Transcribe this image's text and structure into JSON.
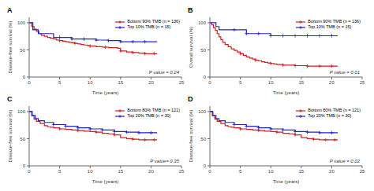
{
  "chart_data": [
    {
      "type": "step",
      "title": "A",
      "xlabel": "Time (years)",
      "ylabel": "Disease-free survival (%)",
      "annotations": [
        "P value = 0.24"
      ],
      "legend": "upper right",
      "grid": false,
      "xlim": [
        0,
        25
      ],
      "ylim": [
        0,
        110
      ],
      "xticks": [
        0,
        5,
        10,
        15,
        20,
        25
      ],
      "yticks": [
        0,
        50,
        100
      ],
      "series": [
        {
          "name": "Bottom 90% TMB (n = 136)",
          "color": "#cc2222",
          "marker": "+",
          "x": [
            0,
            0.4,
            0.8,
            1.2,
            1.6,
            2.0,
            2.5,
            3.0,
            3.5,
            4.0,
            4.5,
            5.0,
            5.5,
            6.0,
            6.5,
            7.0,
            7.5,
            8.0,
            8.5,
            9.0,
            9.5,
            10.0,
            10.5,
            11.0,
            11.5,
            12.0,
            12.5,
            13.0,
            13.5,
            14.0,
            14.5,
            15.0,
            16.0,
            17.0,
            18.0,
            19.0,
            20.0,
            21.0
          ],
          "values": [
            100,
            93,
            88,
            84,
            80,
            77,
            75,
            73,
            71,
            70,
            68,
            67,
            66,
            65,
            64,
            63,
            62,
            61,
            60,
            59,
            58,
            57,
            57,
            56,
            56,
            55,
            55,
            54,
            54,
            54,
            53,
            48,
            46,
            45,
            44,
            43,
            43,
            43
          ],
          "censor_x": [
            5.0,
            7.5,
            10.0,
            12.5,
            15.0,
            17.0,
            19.0,
            20.5
          ],
          "censor_values": [
            67,
            62,
            57,
            55,
            48,
            45,
            43,
            43
          ]
        },
        {
          "name": "Top 10% TMB (n = 15)",
          "color": "#2222cc",
          "marker": "+",
          "x": [
            0,
            0.6,
            1.5,
            2.5,
            4.0,
            5.0,
            7.0,
            9.0,
            11.0,
            13.0,
            15.0,
            17.0,
            19.0,
            21.0
          ],
          "values": [
            100,
            87,
            80,
            80,
            73,
            73,
            70,
            70,
            68,
            67,
            65,
            65,
            65,
            65
          ],
          "censor_x": [
            5.0,
            7.0,
            9.0,
            11.0,
            13.0,
            15.0,
            17.0,
            19.0
          ],
          "censor_values": [
            73,
            70,
            70,
            68,
            67,
            65,
            65,
            65
          ]
        }
      ]
    },
    {
      "type": "step",
      "title": "B",
      "xlabel": "Time (years)",
      "ylabel": "Overall survival (%)",
      "annotations": [
        "P value = 0.01"
      ],
      "legend": "upper right",
      "grid": false,
      "xlim": [
        0,
        25
      ],
      "ylim": [
        0,
        110
      ],
      "xticks": [
        0,
        5,
        10,
        15,
        20,
        25
      ],
      "yticks": [
        0,
        50,
        100
      ],
      "series": [
        {
          "name": "Bottom 90% TMB (n = 136)",
          "color": "#cc2222",
          "marker": "+",
          "x": [
            0,
            0.3,
            0.6,
            0.9,
            1.2,
            1.5,
            1.8,
            2.1,
            2.5,
            3.0,
            3.5,
            4.0,
            4.5,
            5.0,
            5.5,
            6.0,
            6.5,
            7.0,
            7.5,
            8.0,
            8.5,
            9.0,
            9.5,
            10.0,
            10.5,
            11.0,
            11.5,
            12.0,
            13.0,
            14.0,
            15.0,
            16.0,
            17.0,
            18.0,
            19.0,
            20.0,
            21.0
          ],
          "values": [
            100,
            96,
            91,
            86,
            80,
            74,
            69,
            64,
            60,
            56,
            52,
            49,
            46,
            43,
            40,
            37,
            35,
            33,
            31,
            30,
            28,
            27,
            26,
            25,
            24,
            23,
            23,
            22,
            22,
            21,
            21,
            20,
            20,
            20,
            20,
            20,
            20
          ],
          "censor_x": [
            5.0,
            7.5,
            10.0,
            12.0,
            14.0,
            16.0,
            18.0,
            20.0
          ],
          "censor_values": [
            43,
            31,
            25,
            22,
            21,
            20,
            20,
            20
          ]
        },
        {
          "name": "Top 10% TMB (n = 15)",
          "color": "#2222cc",
          "marker": "+",
          "x": [
            0,
            0.5,
            1.0,
            1.5,
            2.5,
            4.0,
            6.0,
            8.0,
            10.0,
            12.0,
            14.0,
            16.0,
            18.0,
            20.0,
            21.0
          ],
          "values": [
            100,
            100,
            93,
            87,
            87,
            87,
            80,
            80,
            76,
            76,
            76,
            76,
            76,
            76,
            76
          ],
          "censor_x": [
            4.0,
            6.0,
            8.0,
            10.0,
            12.0,
            14.0,
            16.0,
            18.0,
            20.0
          ],
          "censor_values": [
            87,
            80,
            80,
            76,
            76,
            76,
            76,
            76,
            76
          ]
        }
      ]
    },
    {
      "type": "step",
      "title": "C",
      "xlabel": "Time (years)",
      "ylabel": "Disease-free survival (%)",
      "annotations": [
        "P value= 0.35"
      ],
      "legend": "upper right",
      "grid": false,
      "xlim": [
        0,
        25
      ],
      "ylim": [
        0,
        110
      ],
      "xticks": [
        0,
        5,
        10,
        15,
        20,
        25
      ],
      "yticks": [
        0,
        50,
        100
      ],
      "series": [
        {
          "name": "Bottom 80% TMB (n = 121)",
          "color": "#cc2222",
          "marker": "+",
          "x": [
            0,
            0.4,
            0.8,
            1.2,
            1.8,
            2.5,
            3.0,
            3.5,
            4.0,
            5.0,
            6.0,
            7.0,
            8.0,
            9.0,
            10.0,
            11.0,
            12.0,
            13.0,
            14.0,
            15.0,
            16.0,
            17.0,
            18.0,
            19.0,
            20.0,
            21.0
          ],
          "values": [
            100,
            92,
            86,
            82,
            78,
            74,
            72,
            71,
            70,
            68,
            67,
            66,
            65,
            64,
            63,
            62,
            60,
            59,
            57,
            52,
            50,
            49,
            48,
            48,
            48,
            48
          ],
          "censor_x": [
            5.0,
            8.0,
            11.0,
            14.0,
            17.0,
            19.0,
            20.5
          ],
          "censor_values": [
            68,
            65,
            62,
            57,
            49,
            48,
            48
          ]
        },
        {
          "name": "Top 20% TMB (n = 30)",
          "color": "#2222cc",
          "marker": "+",
          "x": [
            0,
            0.5,
            1.0,
            1.5,
            2.5,
            4.0,
            6.0,
            8.0,
            10.0,
            12.0,
            14.0,
            16.0,
            18.0,
            20.0,
            21.0
          ],
          "values": [
            100,
            93,
            87,
            83,
            80,
            76,
            73,
            70,
            68,
            66,
            63,
            62,
            61,
            61,
            61
          ],
          "censor_x": [
            4.0,
            6.0,
            8.0,
            10.0,
            12.0,
            14.0,
            16.0,
            18.0,
            20.0
          ],
          "censor_values": [
            76,
            73,
            70,
            68,
            66,
            63,
            62,
            61,
            61
          ]
        }
      ]
    },
    {
      "type": "step",
      "title": "D",
      "xlabel": "Time (years)",
      "ylabel": "Disease-free survival (%)",
      "annotations": [
        "P value = 0.02"
      ],
      "legend": "upper right",
      "grid": false,
      "xlim": [
        0,
        25
      ],
      "ylim": [
        0,
        110
      ],
      "xticks": [
        0,
        5,
        10,
        15,
        20,
        25
      ],
      "yticks": [
        0,
        50,
        100
      ],
      "series": [
        {
          "name": "Bottom 80% TMB (n = 121)",
          "color": "#cc2222",
          "marker": "+",
          "x": [
            0,
            0.4,
            0.8,
            1.2,
            1.8,
            2.5,
            3.0,
            3.5,
            4.0,
            5.0,
            6.0,
            7.0,
            8.0,
            9.0,
            10.0,
            11.0,
            12.0,
            13.0,
            14.0,
            15.0,
            16.0,
            17.0,
            18.0,
            19.0,
            20.0,
            21.0
          ],
          "values": [
            100,
            92,
            86,
            82,
            78,
            74,
            72,
            71,
            70,
            68,
            67,
            66,
            65,
            64,
            63,
            62,
            60,
            59,
            57,
            52,
            50,
            49,
            48,
            48,
            48,
            48
          ],
          "censor_x": [
            5.0,
            8.0,
            11.0,
            14.0,
            17.0,
            19.0,
            20.5
          ],
          "censor_values": [
            68,
            65,
            62,
            57,
            49,
            48,
            48
          ]
        },
        {
          "name": "Top 20% TMB (n = 30)",
          "color": "#2222cc",
          "marker": "+",
          "x": [
            0,
            0.5,
            1.0,
            1.5,
            2.5,
            4.0,
            6.0,
            8.0,
            10.0,
            12.0,
            14.0,
            16.0,
            18.0,
            20.0,
            21.0
          ],
          "values": [
            100,
            93,
            87,
            83,
            80,
            76,
            73,
            70,
            68,
            66,
            63,
            62,
            61,
            61,
            61
          ],
          "censor_x": [
            4.0,
            6.0,
            8.0,
            10.0,
            12.0,
            14.0,
            16.0,
            18.0,
            20.0
          ],
          "censor_values": [
            76,
            73,
            70,
            68,
            66,
            63,
            62,
            61,
            61
          ]
        }
      ]
    }
  ]
}
